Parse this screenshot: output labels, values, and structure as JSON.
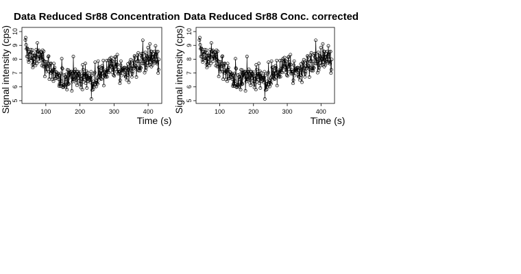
{
  "chart_data": [
    {
      "type": "scatter",
      "title": "Data Reduced Sr88 Concentration",
      "xlabel": "Time (s)",
      "ylabel": "Signal intensity (cps)",
      "xlim": [
        30,
        440
      ],
      "ylim": [
        4.8,
        10.3
      ],
      "xticks": [
        100,
        200,
        300,
        400
      ],
      "yticks": [
        5,
        6,
        7,
        8,
        9,
        10
      ],
      "grid": false,
      "markers": "open-circles",
      "connected": true,
      "series": [
        {
          "x": [
            40,
            60,
            80,
            100,
            120,
            140,
            160,
            180,
            200,
            220,
            240,
            260,
            280,
            300,
            320,
            340,
            360,
            380,
            400,
            420,
            430
          ],
          "values": [
            8.8,
            8.0,
            8.3,
            7.8,
            7.2,
            6.2,
            6.7,
            7.0,
            6.6,
            6.8,
            6.4,
            6.7,
            7.4,
            7.6,
            7.0,
            7.2,
            7.6,
            7.8,
            8.0,
            7.8,
            7.9
          ]
        }
      ]
    },
    {
      "type": "scatter",
      "title": "Data Reduced Sr88 Conc. corrected",
      "xlabel": "Time (s)",
      "ylabel": "Signal intensity (cps)",
      "xlim": [
        30,
        440
      ],
      "ylim": [
        4.8,
        10.3
      ],
      "xticks": [
        100,
        200,
        300,
        400
      ],
      "yticks": [
        5,
        6,
        7,
        8,
        9,
        10
      ],
      "grid": false,
      "markers": "open-circles",
      "connected": true,
      "series": [
        {
          "x": [
            40,
            60,
            80,
            100,
            120,
            140,
            160,
            180,
            200,
            220,
            240,
            260,
            280,
            300,
            320,
            340,
            360,
            380,
            400,
            420,
            430
          ],
          "values": [
            8.8,
            8.0,
            8.3,
            7.8,
            7.2,
            6.2,
            6.7,
            7.0,
            6.6,
            6.8,
            6.4,
            6.7,
            7.4,
            7.6,
            7.0,
            7.2,
            7.6,
            7.8,
            8.0,
            7.8,
            7.9
          ]
        }
      ]
    }
  ]
}
